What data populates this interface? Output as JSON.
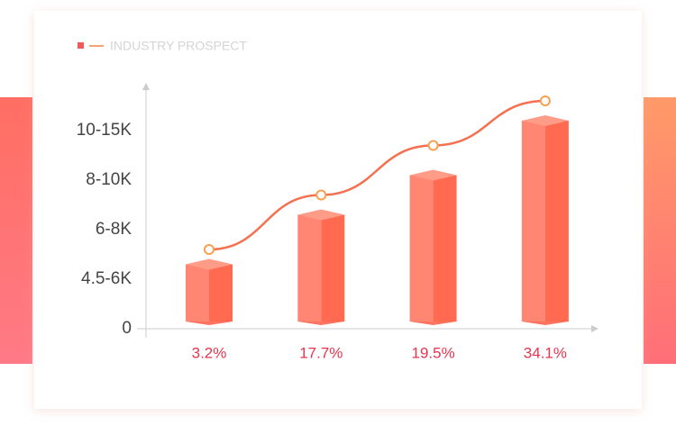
{
  "chart_data": {
    "type": "bar3d",
    "title": "INDUSTRY PROSPECT",
    "categories": [
      "3.2%",
      "17.7%",
      "19.5%",
      "34.1%"
    ],
    "series": [
      {
        "type": "bar3d",
        "color": "#ff6a50",
        "values": [
          1.3,
          2.3,
          3.1,
          4.2
        ]
      },
      {
        "type": "line",
        "color": "#f4704f",
        "values": [
          1.6,
          2.7,
          3.7,
          4.6
        ]
      }
    ],
    "ylim": [
      0,
      5
    ],
    "yticks": [
      0,
      {
        "value": 1,
        "label": "4.5-6K"
      },
      {
        "value": 2,
        "label": "6-8K"
      },
      {
        "value": 3,
        "label": "8-10K"
      },
      {
        "value": 4,
        "label": "10-15K"
      }
    ]
  }
}
